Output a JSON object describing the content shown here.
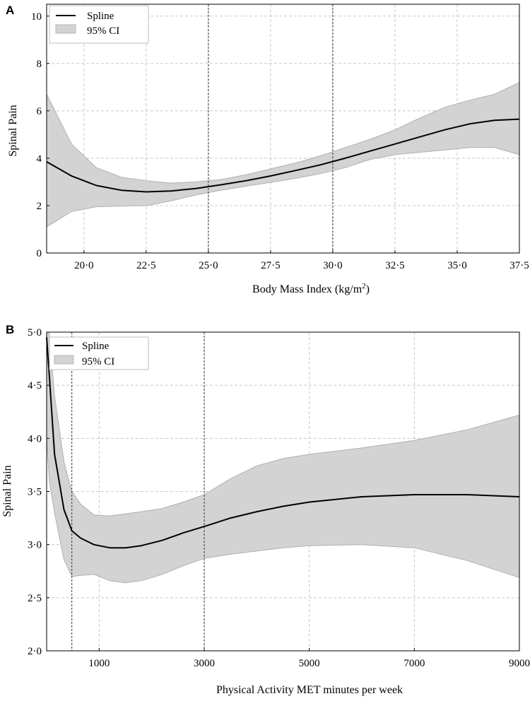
{
  "chart_data": [
    {
      "type": "line",
      "panel_label": "A",
      "xlabel": "Body Mass Index (kg/m",
      "xlabel_sup": "2",
      "xlabel_close": ")",
      "ylabel": "Spinal Pain",
      "xlim": [
        18.5,
        37.5
      ],
      "ylim": [
        0,
        10.5
      ],
      "x_ticks": [
        20,
        22.5,
        25,
        27.5,
        30,
        32.5,
        35,
        37.5
      ],
      "x_tick_labels": [
        "20·0",
        "22·5",
        "25·0",
        "27·5",
        "30·0",
        "32·5",
        "35·0",
        "37·5"
      ],
      "y_ticks": [
        0,
        2,
        4,
        6,
        8,
        10
      ],
      "y_tick_labels": [
        "0",
        "2",
        "4",
        "6",
        "8",
        "10"
      ],
      "grid": true,
      "reference_lines_x": [
        25,
        30
      ],
      "legend": {
        "placement": "top-left",
        "entries": [
          "Spline",
          "95% CI"
        ]
      },
      "series": [
        {
          "name": "Spline",
          "x": [
            18.5,
            19.5,
            20.5,
            21.5,
            22.5,
            23.5,
            24.5,
            25.5,
            26.5,
            27.5,
            28.5,
            29.5,
            30.5,
            31.5,
            32.5,
            33.5,
            34.5,
            35.5,
            36.5,
            37.5
          ],
          "y": [
            3.85,
            3.25,
            2.85,
            2.65,
            2.58,
            2.62,
            2.72,
            2.88,
            3.05,
            3.25,
            3.48,
            3.72,
            4.0,
            4.3,
            4.6,
            4.9,
            5.2,
            5.45,
            5.6,
            5.65
          ]
        },
        {
          "name": "95% CI",
          "x": [
            18.5,
            19.5,
            20.5,
            21.5,
            22.5,
            23.5,
            24.5,
            25.5,
            26.5,
            27.5,
            28.5,
            29.5,
            30.5,
            31.5,
            32.5,
            33.5,
            34.5,
            35.5,
            36.5,
            37.5
          ],
          "lower": [
            1.1,
            1.75,
            1.95,
            1.98,
            2.0,
            2.2,
            2.45,
            2.65,
            2.82,
            2.98,
            3.15,
            3.35,
            3.6,
            3.95,
            4.15,
            4.25,
            4.35,
            4.45,
            4.45,
            4.15
          ],
          "upper": [
            6.7,
            4.6,
            3.6,
            3.2,
            3.05,
            2.95,
            3.0,
            3.1,
            3.3,
            3.55,
            3.8,
            4.1,
            4.45,
            4.8,
            5.2,
            5.7,
            6.15,
            6.45,
            6.7,
            7.2
          ]
        }
      ]
    },
    {
      "type": "line",
      "panel_label": "B",
      "xlabel": "Physical Activity MET minutes per week",
      "ylabel": "Spinal Pain",
      "xlim": [
        0,
        9000
      ],
      "ylim": [
        2.0,
        5.0
      ],
      "x_ticks": [
        1000,
        3000,
        5000,
        7000,
        9000
      ],
      "x_tick_labels": [
        "1000",
        "3000",
        "5000",
        "7000",
        "9000"
      ],
      "x_grid": [
        1000,
        3000,
        5000,
        7000
      ],
      "y_ticks": [
        2.0,
        2.5,
        3.0,
        3.5,
        4.0,
        4.5,
        5.0
      ],
      "y_tick_labels": [
        "2·0",
        "2·5",
        "3·0",
        "3·5",
        "4·0",
        "4·5",
        "5·0"
      ],
      "grid": true,
      "reference_lines_x": [
        480,
        3000
      ],
      "legend": {
        "placement": "top-left",
        "entries": [
          "Spline",
          "95% CI"
        ]
      },
      "series": [
        {
          "name": "Spline",
          "x": [
            0,
            50,
            150,
            330,
            480,
            650,
            900,
            1200,
            1500,
            1800,
            2200,
            2600,
            3000,
            3500,
            4000,
            4500,
            5000,
            6000,
            7000,
            8000,
            9000
          ],
          "y": [
            4.95,
            4.6,
            3.85,
            3.33,
            3.13,
            3.06,
            3.0,
            2.97,
            2.97,
            2.99,
            3.04,
            3.11,
            3.17,
            3.25,
            3.31,
            3.36,
            3.4,
            3.45,
            3.47,
            3.47,
            3.45
          ]
        },
        {
          "name": "95% CI",
          "x": [
            0,
            50,
            150,
            330,
            480,
            650,
            900,
            1200,
            1500,
            1800,
            2200,
            2600,
            3000,
            3500,
            4000,
            4500,
            5000,
            6000,
            7000,
            8000,
            9000
          ],
          "lower": [
            4.0,
            3.6,
            3.3,
            2.86,
            2.7,
            2.71,
            2.72,
            2.66,
            2.64,
            2.66,
            2.72,
            2.8,
            2.87,
            2.91,
            2.94,
            2.97,
            2.99,
            3.0,
            2.97,
            2.85,
            2.69
          ],
          "upper": [
            5.0,
            5.0,
            4.4,
            3.78,
            3.5,
            3.38,
            3.28,
            3.27,
            3.29,
            3.31,
            3.34,
            3.4,
            3.47,
            3.62,
            3.74,
            3.81,
            3.85,
            3.91,
            3.98,
            4.08,
            4.22
          ]
        }
      ]
    }
  ]
}
